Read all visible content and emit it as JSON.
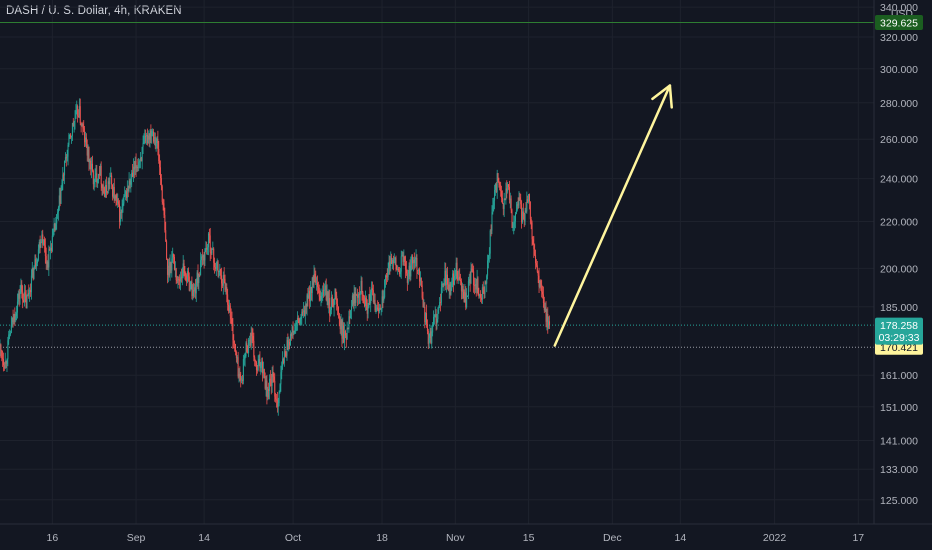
{
  "header": {
    "title": "DASH / U. S. Dollar, 4h, KRAKEN",
    "currency": "USD"
  },
  "chart_data": {
    "type": "candlestick",
    "symbol": "DASH / U. S. Dollar",
    "interval": "4h",
    "exchange": "KRAKEN",
    "y_scale": "log",
    "ylim": [
      119,
      345
    ],
    "y_ticks": [
      {
        "value": 340,
        "label": "340.000"
      },
      {
        "value": 320,
        "label": "320.000"
      },
      {
        "value": 300,
        "label": "300.000"
      },
      {
        "value": 280,
        "label": "280.000"
      },
      {
        "value": 260,
        "label": "260.000"
      },
      {
        "value": 240,
        "label": "240.000"
      },
      {
        "value": 220,
        "label": "220.000"
      },
      {
        "value": 200,
        "label": "200.000"
      },
      {
        "value": 185,
        "label": "185.000"
      },
      {
        "value": 161,
        "label": "161.000"
      },
      {
        "value": 151,
        "label": "151.000"
      },
      {
        "value": 141,
        "label": "141.000"
      },
      {
        "value": 133,
        "label": "133.000"
      },
      {
        "value": 125,
        "label": "125.000"
      }
    ],
    "x_start": "2021-08-06",
    "x_end": "2022-01-20",
    "x_ticks": [
      {
        "date": "2021-08-16",
        "label": "16"
      },
      {
        "date": "2021-09-01",
        "label": "Sep"
      },
      {
        "date": "2021-09-14",
        "label": "14"
      },
      {
        "date": "2021-10-01",
        "label": "Oct"
      },
      {
        "date": "2021-10-18",
        "label": "18"
      },
      {
        "date": "2021-11-01",
        "label": "Nov"
      },
      {
        "date": "2021-11-15",
        "label": "15"
      },
      {
        "date": "2021-12-01",
        "label": "Dec"
      },
      {
        "date": "2021-12-14",
        "label": "14"
      },
      {
        "date": "2022-01-01",
        "label": "2022"
      },
      {
        "date": "2022-01-17",
        "label": "17"
      }
    ],
    "price_path": [
      [
        "2021-08-06",
        170
      ],
      [
        "2021-08-07",
        165
      ],
      [
        "2021-08-08",
        176
      ],
      [
        "2021-08-10",
        192
      ],
      [
        "2021-08-11",
        186
      ],
      [
        "2021-08-13",
        205
      ],
      [
        "2021-08-14",
        215
      ],
      [
        "2021-08-15",
        202
      ],
      [
        "2021-08-17",
        222
      ],
      [
        "2021-08-18",
        240
      ],
      [
        "2021-08-19",
        256
      ],
      [
        "2021-08-20",
        268
      ],
      [
        "2021-08-21",
        276
      ],
      [
        "2021-08-22",
        262
      ],
      [
        "2021-08-23",
        250
      ],
      [
        "2021-08-24",
        238
      ],
      [
        "2021-08-25",
        245
      ],
      [
        "2021-08-26",
        232
      ],
      [
        "2021-08-27",
        240
      ],
      [
        "2021-08-28",
        230
      ],
      [
        "2021-08-29",
        222
      ],
      [
        "2021-08-30",
        232
      ],
      [
        "2021-09-01",
        246
      ],
      [
        "2021-09-02",
        252
      ],
      [
        "2021-09-03",
        260
      ],
      [
        "2021-09-04",
        266
      ],
      [
        "2021-09-05",
        258
      ],
      [
        "2021-09-06",
        232
      ],
      [
        "2021-09-07",
        198
      ],
      [
        "2021-09-08",
        205
      ],
      [
        "2021-09-09",
        194
      ],
      [
        "2021-09-10",
        200
      ],
      [
        "2021-09-12",
        190
      ],
      [
        "2021-09-14",
        206
      ],
      [
        "2021-09-15",
        212
      ],
      [
        "2021-09-16",
        202
      ],
      [
        "2021-09-18",
        194
      ],
      [
        "2021-09-19",
        182
      ],
      [
        "2021-09-20",
        168
      ],
      [
        "2021-09-21",
        158
      ],
      [
        "2021-09-22",
        170
      ],
      [
        "2021-09-23",
        174
      ],
      [
        "2021-09-24",
        162
      ],
      [
        "2021-09-25",
        166
      ],
      [
        "2021-09-26",
        156
      ],
      [
        "2021-09-27",
        160
      ],
      [
        "2021-09-28",
        152
      ],
      [
        "2021-09-29",
        165
      ],
      [
        "2021-09-30",
        172
      ],
      [
        "2021-10-01",
        176
      ],
      [
        "2021-10-03",
        182
      ],
      [
        "2021-10-05",
        196
      ],
      [
        "2021-10-06",
        188
      ],
      [
        "2021-10-07",
        192
      ],
      [
        "2021-10-08",
        184
      ],
      [
        "2021-10-09",
        190
      ],
      [
        "2021-10-10",
        178
      ],
      [
        "2021-10-11",
        173
      ],
      [
        "2021-10-12",
        186
      ],
      [
        "2021-10-14",
        194
      ],
      [
        "2021-10-15",
        184
      ],
      [
        "2021-10-16",
        190
      ],
      [
        "2021-10-17",
        183
      ],
      [
        "2021-10-18",
        188
      ],
      [
        "2021-10-20",
        206
      ],
      [
        "2021-10-21",
        198
      ],
      [
        "2021-10-22",
        204
      ],
      [
        "2021-10-23",
        196
      ],
      [
        "2021-10-24",
        206
      ],
      [
        "2021-10-25",
        200
      ],
      [
        "2021-10-26",
        184
      ],
      [
        "2021-10-27",
        172
      ],
      [
        "2021-10-28",
        180
      ],
      [
        "2021-10-29",
        185
      ],
      [
        "2021-10-30",
        198
      ],
      [
        "2021-10-31",
        190
      ],
      [
        "2021-11-01",
        200
      ],
      [
        "2021-11-02",
        193
      ],
      [
        "2021-11-03",
        186
      ],
      [
        "2021-11-04",
        198
      ],
      [
        "2021-11-05",
        194
      ],
      [
        "2021-11-06",
        188
      ],
      [
        "2021-11-07",
        196
      ],
      [
        "2021-11-08",
        222
      ],
      [
        "2021-11-09",
        240
      ],
      [
        "2021-11-10",
        226
      ],
      [
        "2021-11-11",
        236
      ],
      [
        "2021-11-12",
        218
      ],
      [
        "2021-11-13",
        230
      ],
      [
        "2021-11-14",
        220
      ],
      [
        "2021-11-15",
        234
      ],
      [
        "2021-11-16",
        206
      ],
      [
        "2021-11-17",
        195
      ],
      [
        "2021-11-18",
        184
      ],
      [
        "2021-11-19",
        178.258
      ]
    ],
    "current_price": {
      "value": 178.258,
      "label": "178.258",
      "countdown": "03:29:33",
      "color": "#26a69a"
    },
    "horizontal_lines": [
      {
        "value": 329.625,
        "label": "329.625",
        "color": "#1b5e20",
        "style": "solid"
      },
      {
        "value": 170.421,
        "label": "170.421",
        "color": "#fff59d",
        "style": "dotted"
      }
    ],
    "arrow": {
      "from": {
        "date": "2021-11-20",
        "price": 171
      },
      "to": {
        "date": "2021-12-12",
        "price": 290
      },
      "color": "#fff59d"
    },
    "colors": {
      "up": "#26a69a",
      "down": "#ef5350",
      "background": "#131722",
      "grid": "#1e222d"
    }
  }
}
